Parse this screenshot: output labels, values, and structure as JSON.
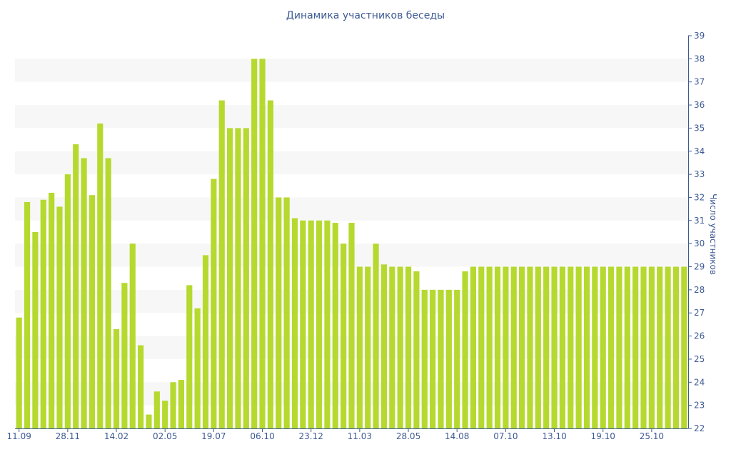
{
  "chart_data": {
    "type": "bar",
    "title": "Динамика участников беседы",
    "ylabel": "Число участников",
    "xlabel": "",
    "ylim": [
      22,
      39
    ],
    "y_ticks": [
      22,
      23,
      24,
      25,
      26,
      27,
      28,
      29,
      30,
      31,
      32,
      33,
      34,
      35,
      36,
      37,
      38,
      39
    ],
    "x_tick_labels": [
      {
        "index": 0,
        "label": "11.09"
      },
      {
        "index": 6,
        "label": "28.11"
      },
      {
        "index": 12,
        "label": "14.02"
      },
      {
        "index": 18,
        "label": "02.05"
      },
      {
        "index": 24,
        "label": "19.07"
      },
      {
        "index": 30,
        "label": "06.10"
      },
      {
        "index": 36,
        "label": "23.12"
      },
      {
        "index": 42,
        "label": "11.03"
      },
      {
        "index": 48,
        "label": "28.05"
      },
      {
        "index": 54,
        "label": "14.08"
      },
      {
        "index": 60,
        "label": "07.10"
      },
      {
        "index": 66,
        "label": "13.10"
      },
      {
        "index": 72,
        "label": "19.10"
      },
      {
        "index": 78,
        "label": "25.10"
      }
    ],
    "y_axis_position": "right",
    "grid": "alternating horizontal bands",
    "bar_color": "#b5d92e",
    "values": [
      26.8,
      31.8,
      30.5,
      31.9,
      32.2,
      31.6,
      33.0,
      34.3,
      33.7,
      32.1,
      35.2,
      33.7,
      26.3,
      28.3,
      30.0,
      25.6,
      22.6,
      23.6,
      23.2,
      24.0,
      24.1,
      28.2,
      27.2,
      29.5,
      32.8,
      36.2,
      35.0,
      35.0,
      35.0,
      38.0,
      38.0,
      36.2,
      32.0,
      32.0,
      31.1,
      31.0,
      31.0,
      31.0,
      31.0,
      30.9,
      30.0,
      30.9,
      29.0,
      29.0,
      30.0,
      29.1,
      29.0,
      29.0,
      29.0,
      28.8,
      28.0,
      28.0,
      28.0,
      28.0,
      28.0,
      28.8,
      29.0,
      29.0,
      29.0,
      29.0,
      29.0,
      29.0,
      29.0,
      29.0,
      29.0,
      29.0,
      29.0,
      29.0,
      29.0,
      29.0,
      29.0,
      29.0,
      29.0,
      29.0,
      29.0,
      29.0,
      29.0,
      29.0,
      29.0,
      29.0,
      29.0,
      29.0,
      29.0
    ]
  }
}
